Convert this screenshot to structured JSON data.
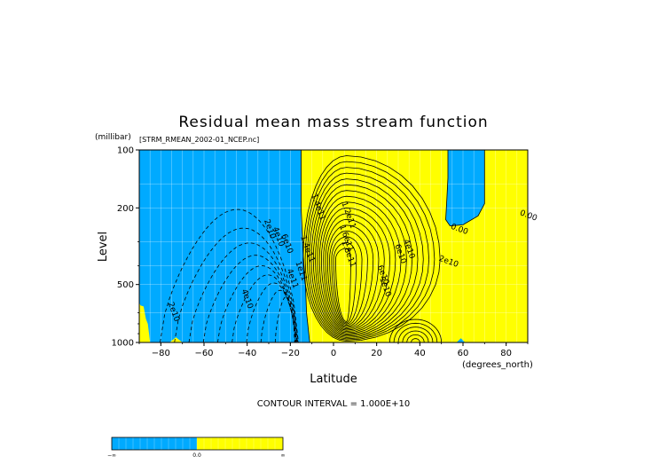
{
  "chart_data": {
    "type": "heatmap",
    "title": "Residual mean mass stream function",
    "file_label": "[STRM_RMEAN_2002-01_NCEP.nc]",
    "xlabel": "Latitude",
    "xunits": "(degrees_north)",
    "ylabel": "Level",
    "yunits": "(millibar)",
    "xlim": [
      -90,
      90
    ],
    "ylim": [
      1000,
      100
    ],
    "y_scale": "log",
    "x_ticks": [
      -80,
      -60,
      -40,
      -20,
      0,
      20,
      40,
      60,
      80
    ],
    "x_tick_labels": [
      "−80",
      "−60",
      "−40",
      "−20",
      "0",
      "20",
      "40",
      "60",
      "80"
    ],
    "y_ticks": [
      100,
      200,
      500,
      1000
    ],
    "y_tick_labels": [
      "100",
      "200",
      "500",
      "1000"
    ],
    "grid": true,
    "contour_interval_text": "CONTOUR INTERVAL = 1.000E+10",
    "contour_interval": 10000000000.0,
    "contour_labels": [
      {
        "text": "2e10",
        "lat": -30.5,
        "p": 260
      },
      {
        "text": "2e10",
        "lat": -75,
        "p": 700
      },
      {
        "text": "4e10",
        "lat": -41,
        "p": 600
      },
      {
        "text": "4e10",
        "lat": -26.5,
        "p": 285
      },
      {
        "text": "6e10",
        "lat": -22.5,
        "p": 310
      },
      {
        "text": "4e11",
        "lat": -20,
        "p": 470
      },
      {
        "text": "1.4e11",
        "lat": -13,
        "p": 330
      },
      {
        "text": "1e11",
        "lat": -16,
        "p": 430
      },
      {
        "text": "1.4e11",
        "lat": -8,
        "p": 200
      },
      {
        "text": "1.2e11",
        "lat": 6,
        "p": 220
      },
      {
        "text": "1.6e11",
        "lat": 5,
        "p": 290
      },
      {
        "text": "1.8e11",
        "lat": 6,
        "p": 350
      },
      {
        "text": "6e10",
        "lat": 22,
        "p": 450
      },
      {
        "text": "1e10",
        "lat": 23,
        "p": 520
      },
      {
        "text": "6e10",
        "lat": 30,
        "p": 350
      },
      {
        "text": "4e10",
        "lat": 34,
        "p": 330
      },
      {
        "text": "2e10",
        "lat": 53,
        "p": 390
      },
      {
        "text": "0.00",
        "lat": 58,
        "p": 265
      },
      {
        "text": "0.00",
        "lat": 90,
        "p": 225
      }
    ],
    "fill_levels": [
      {
        "range": "−∞ to 0.0",
        "color": "#00aaff"
      },
      {
        "range": "0.0 to ∞",
        "color": "#ffff00"
      }
    ],
    "colorbar_labels": [
      "−∞",
      "0.0",
      "∞"
    ]
  }
}
